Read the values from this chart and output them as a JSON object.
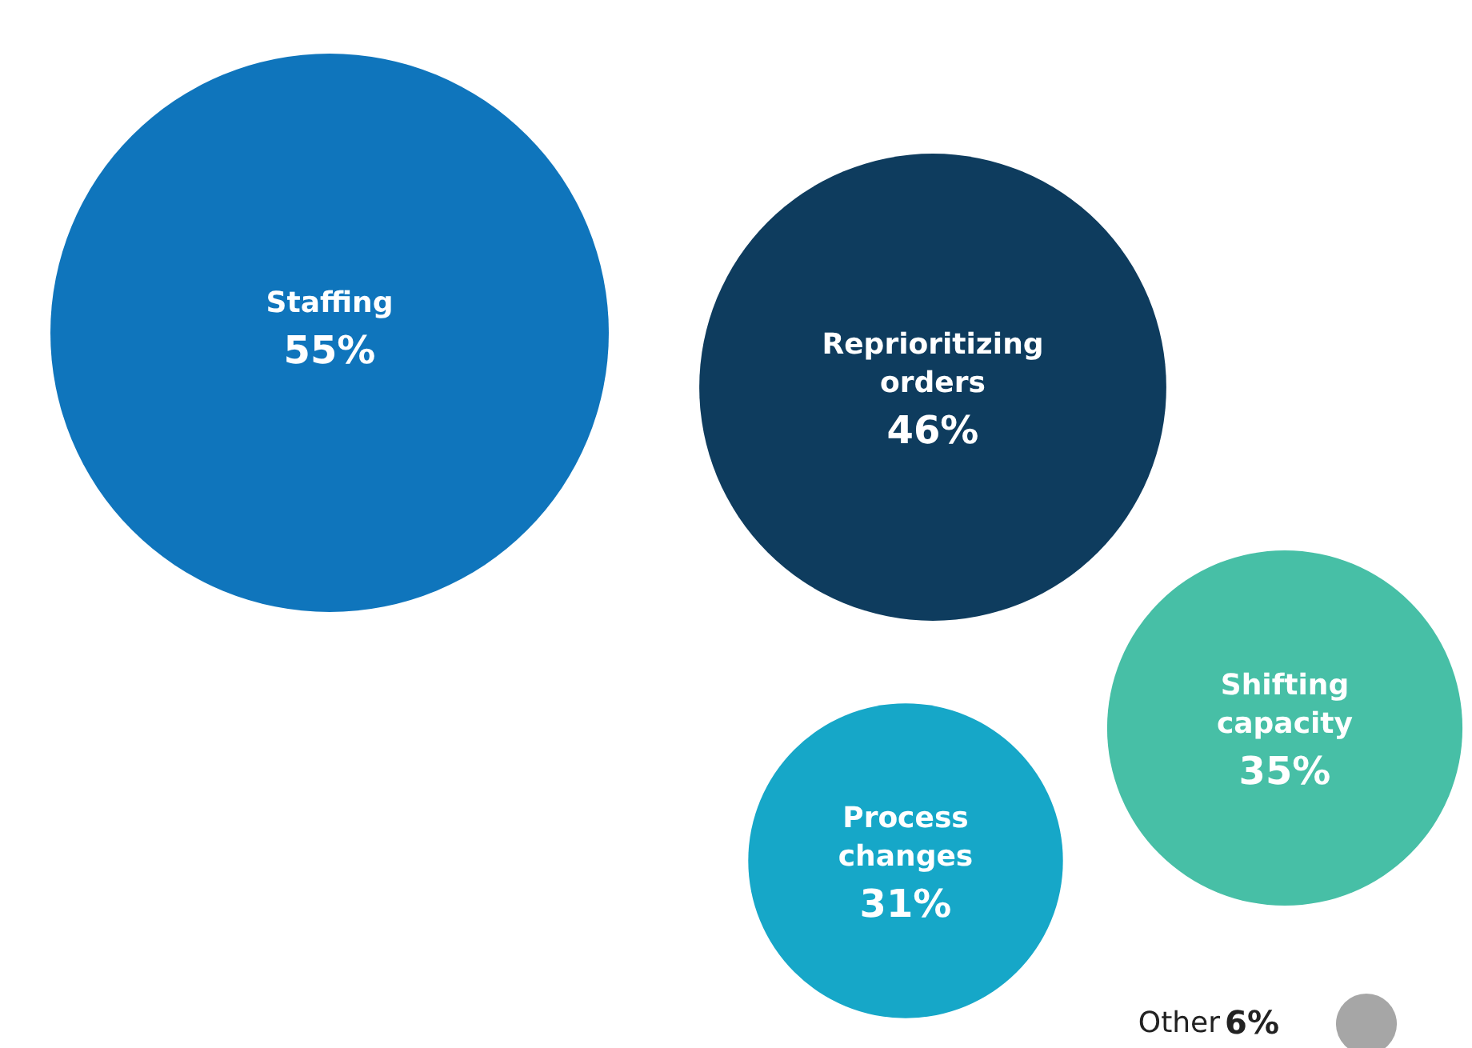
{
  "chart_data": {
    "type": "other",
    "categories": [
      "Staffing",
      "Reprioritizing orders",
      "Shifting capacity",
      "Process changes",
      "Other"
    ],
    "values": [
      55,
      46,
      35,
      31,
      6
    ],
    "value_labels": [
      "55%",
      "46%",
      "35%",
      "31%",
      "6%"
    ],
    "colors": [
      "#0f75bc",
      "#0e3c5e",
      "#47bfa6",
      "#16a7c8",
      "#a6a6a6"
    ]
  }
}
